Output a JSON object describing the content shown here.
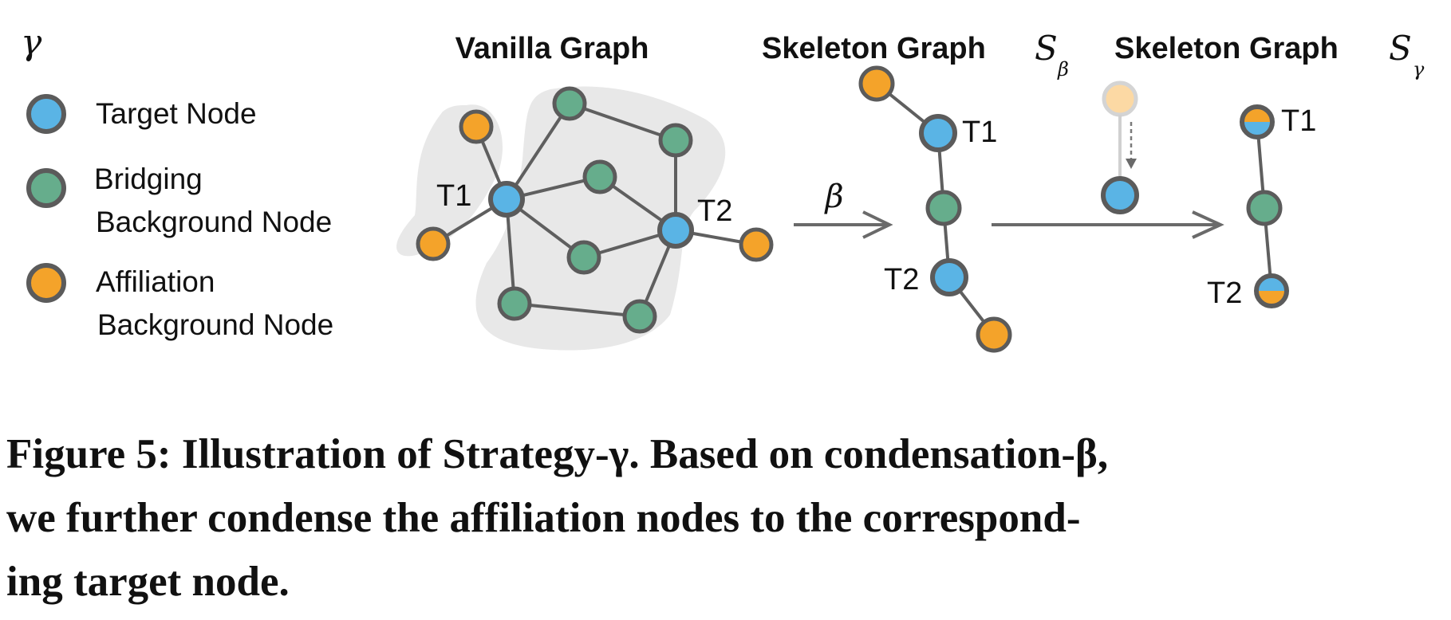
{
  "legend": {
    "symbol": "γ",
    "items": [
      {
        "lines": [
          "Target Node"
        ],
        "color": "#5ab4e5"
      },
      {
        "lines": [
          "Bridging",
          "Background Node"
        ],
        "color": "#66ad8c"
      },
      {
        "lines": [
          "Affiliation",
          "Background Node"
        ],
        "color": "#f4a32a"
      }
    ]
  },
  "panels": {
    "vanilla_title": "Vanilla Graph",
    "skeleton_beta_title": "Skeleton Graph",
    "skeleton_beta_symbol": "S",
    "skeleton_beta_sub": "β",
    "skeleton_gamma_title": "Skeleton Graph",
    "skeleton_gamma_symbol": "S",
    "skeleton_gamma_sub": "γ"
  },
  "arrow_label": "β",
  "node_labels": {
    "t1": "T1",
    "t2": "T2"
  },
  "colors": {
    "target": "#5ab4e5",
    "bridging": "#66ad8c",
    "affiliation": "#f4a32a",
    "node_stroke": "#5b5b5b",
    "edge": "#5f5f5f",
    "hull": "#e8e8e8",
    "faded_affiliation": "#fcd9a4"
  },
  "caption": [
    "Figure 5: Illustration of Strategy-γ. Based on condensation-β,",
    "we further condense the affiliation nodes to the correspond-",
    "ing target node."
  ]
}
